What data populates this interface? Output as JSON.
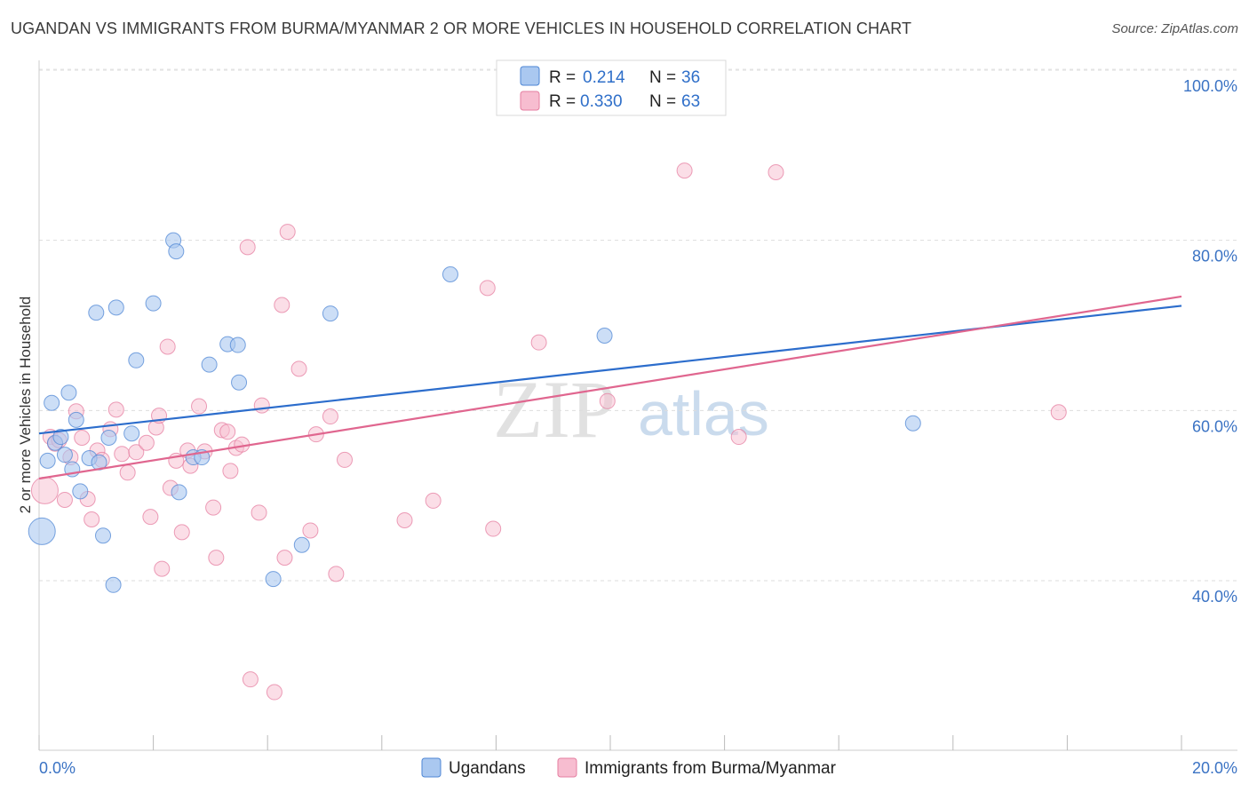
{
  "title": "UGANDAN VS IMMIGRANTS FROM BURMA/MYANMAR 2 OR MORE VEHICLES IN HOUSEHOLD CORRELATION CHART",
  "source": "Source: ZipAtlas.com",
  "watermark": {
    "zip": "ZIP",
    "atlas": "atlas"
  },
  "colors": {
    "ugandan_fill": "#aac8f0",
    "ugandan_stroke": "#4d86d4",
    "ugandan_line": "#2c6dcc",
    "burma_fill": "#f7bdd0",
    "burma_stroke": "#e57ea0",
    "burma_line": "#e0668f",
    "tick_label": "#3b73c4"
  },
  "legend_top": {
    "r_label": "R =",
    "n_label": "N =",
    "series": [
      {
        "name": "Ugandans",
        "r": "0.214",
        "n": "36"
      },
      {
        "name": "Immigrants from Burma/Myanmar",
        "r": "0.330",
        "n": "63"
      }
    ]
  },
  "chart_data": {
    "type": "scatter",
    "title": "UGANDAN VS IMMIGRANTS FROM BURMA/MYANMAR 2 OR MORE VEHICLES IN HOUSEHOLD CORRELATION CHART",
    "xlabel": "",
    "ylabel": "2 or more Vehicles in Household",
    "xlim": [
      0,
      20
    ],
    "ylim": [
      20,
      102
    ],
    "x_ticks": [
      0,
      20
    ],
    "x_tick_labels": [
      "0.0%",
      "20.0%"
    ],
    "y_ticks": [
      40,
      60,
      80,
      100
    ],
    "y_tick_labels": [
      "40.0%",
      "60.0%",
      "80.0%",
      "100.0%"
    ],
    "grid": true,
    "legend_position": "top-center",
    "series": [
      {
        "name": "Ugandans",
        "r": 0.214,
        "n": 36,
        "trend": {
          "x": [
            0,
            20
          ],
          "y": [
            57.3,
            72.3
          ]
        },
        "points": [
          {
            "x": 0.05,
            "y": 45.8,
            "big": true
          },
          {
            "x": 0.15,
            "y": 54.1
          },
          {
            "x": 0.22,
            "y": 60.9
          },
          {
            "x": 0.28,
            "y": 56.2
          },
          {
            "x": 0.38,
            "y": 56.9
          },
          {
            "x": 0.45,
            "y": 54.8
          },
          {
            "x": 0.52,
            "y": 62.1
          },
          {
            "x": 0.58,
            "y": 53.1
          },
          {
            "x": 0.65,
            "y": 58.9
          },
          {
            "x": 0.72,
            "y": 50.5
          },
          {
            "x": 0.88,
            "y": 54.4
          },
          {
            "x": 1.0,
            "y": 71.5
          },
          {
            "x": 1.05,
            "y": 53.9
          },
          {
            "x": 1.12,
            "y": 45.3
          },
          {
            "x": 1.22,
            "y": 56.8
          },
          {
            "x": 1.3,
            "y": 39.5
          },
          {
            "x": 1.35,
            "y": 72.1
          },
          {
            "x": 1.62,
            "y": 57.3
          },
          {
            "x": 1.7,
            "y": 65.9
          },
          {
            "x": 2.0,
            "y": 72.6
          },
          {
            "x": 2.35,
            "y": 80.0
          },
          {
            "x": 2.4,
            "y": 78.7
          },
          {
            "x": 2.45,
            "y": 50.4
          },
          {
            "x": 2.7,
            "y": 54.5
          },
          {
            "x": 2.85,
            "y": 54.5
          },
          {
            "x": 2.98,
            "y": 65.4
          },
          {
            "x": 3.3,
            "y": 67.8
          },
          {
            "x": 3.48,
            "y": 67.7
          },
          {
            "x": 3.5,
            "y": 63.3
          },
          {
            "x": 4.1,
            "y": 40.2
          },
          {
            "x": 4.6,
            "y": 44.2
          },
          {
            "x": 5.1,
            "y": 71.4
          },
          {
            "x": 7.2,
            "y": 76.0
          },
          {
            "x": 9.9,
            "y": 68.8
          },
          {
            "x": 15.3,
            "y": 58.5
          }
        ]
      },
      {
        "name": "Immigrants from Burma/Myanmar",
        "r": 0.33,
        "n": 63,
        "trend": {
          "x": [
            0,
            20
          ],
          "y": [
            52.0,
            73.4
          ]
        },
        "points": [
          {
            "x": 0.1,
            "y": 50.6,
            "big": true
          },
          {
            "x": 0.2,
            "y": 56.9
          },
          {
            "x": 0.28,
            "y": 56.1
          },
          {
            "x": 0.35,
            "y": 56.5
          },
          {
            "x": 0.45,
            "y": 49.5
          },
          {
            "x": 0.55,
            "y": 54.5
          },
          {
            "x": 0.65,
            "y": 59.9
          },
          {
            "x": 0.75,
            "y": 56.8
          },
          {
            "x": 0.85,
            "y": 49.6
          },
          {
            "x": 0.92,
            "y": 47.2
          },
          {
            "x": 1.02,
            "y": 55.3
          },
          {
            "x": 1.1,
            "y": 54.2
          },
          {
            "x": 1.25,
            "y": 57.8
          },
          {
            "x": 1.35,
            "y": 60.1
          },
          {
            "x": 1.45,
            "y": 54.9
          },
          {
            "x": 1.55,
            "y": 52.7
          },
          {
            "x": 1.7,
            "y": 55.1
          },
          {
            "x": 1.88,
            "y": 56.2
          },
          {
            "x": 1.95,
            "y": 47.5
          },
          {
            "x": 2.05,
            "y": 58.0
          },
          {
            "x": 2.1,
            "y": 59.4
          },
          {
            "x": 2.15,
            "y": 41.4
          },
          {
            "x": 2.25,
            "y": 67.5
          },
          {
            "x": 2.3,
            "y": 50.9
          },
          {
            "x": 2.4,
            "y": 54.1
          },
          {
            "x": 2.5,
            "y": 45.7
          },
          {
            "x": 2.6,
            "y": 55.3
          },
          {
            "x": 2.65,
            "y": 53.5
          },
          {
            "x": 2.8,
            "y": 60.5
          },
          {
            "x": 2.9,
            "y": 55.2
          },
          {
            "x": 3.05,
            "y": 48.6
          },
          {
            "x": 3.1,
            "y": 42.7
          },
          {
            "x": 3.2,
            "y": 57.7
          },
          {
            "x": 3.3,
            "y": 57.5
          },
          {
            "x": 3.35,
            "y": 52.9
          },
          {
            "x": 3.45,
            "y": 55.6
          },
          {
            "x": 3.55,
            "y": 56.0
          },
          {
            "x": 3.65,
            "y": 79.2
          },
          {
            "x": 3.7,
            "y": 28.4
          },
          {
            "x": 3.85,
            "y": 48.0
          },
          {
            "x": 3.9,
            "y": 60.6
          },
          {
            "x": 4.12,
            "y": 26.9
          },
          {
            "x": 4.25,
            "y": 72.4
          },
          {
            "x": 4.3,
            "y": 42.7
          },
          {
            "x": 4.35,
            "y": 81.0
          },
          {
            "x": 4.55,
            "y": 64.9
          },
          {
            "x": 4.75,
            "y": 45.9
          },
          {
            "x": 4.85,
            "y": 57.2
          },
          {
            "x": 5.1,
            "y": 59.3
          },
          {
            "x": 5.2,
            "y": 40.8
          },
          {
            "x": 5.35,
            "y": 54.2
          },
          {
            "x": 6.4,
            "y": 47.1
          },
          {
            "x": 6.9,
            "y": 49.4
          },
          {
            "x": 7.85,
            "y": 74.4
          },
          {
            "x": 7.95,
            "y": 46.1
          },
          {
            "x": 8.75,
            "y": 68.0
          },
          {
            "x": 9.95,
            "y": 61.1
          },
          {
            "x": 11.3,
            "y": 88.2
          },
          {
            "x": 12.25,
            "y": 56.9
          },
          {
            "x": 12.9,
            "y": 88.0
          },
          {
            "x": 17.85,
            "y": 59.8
          }
        ]
      }
    ]
  }
}
